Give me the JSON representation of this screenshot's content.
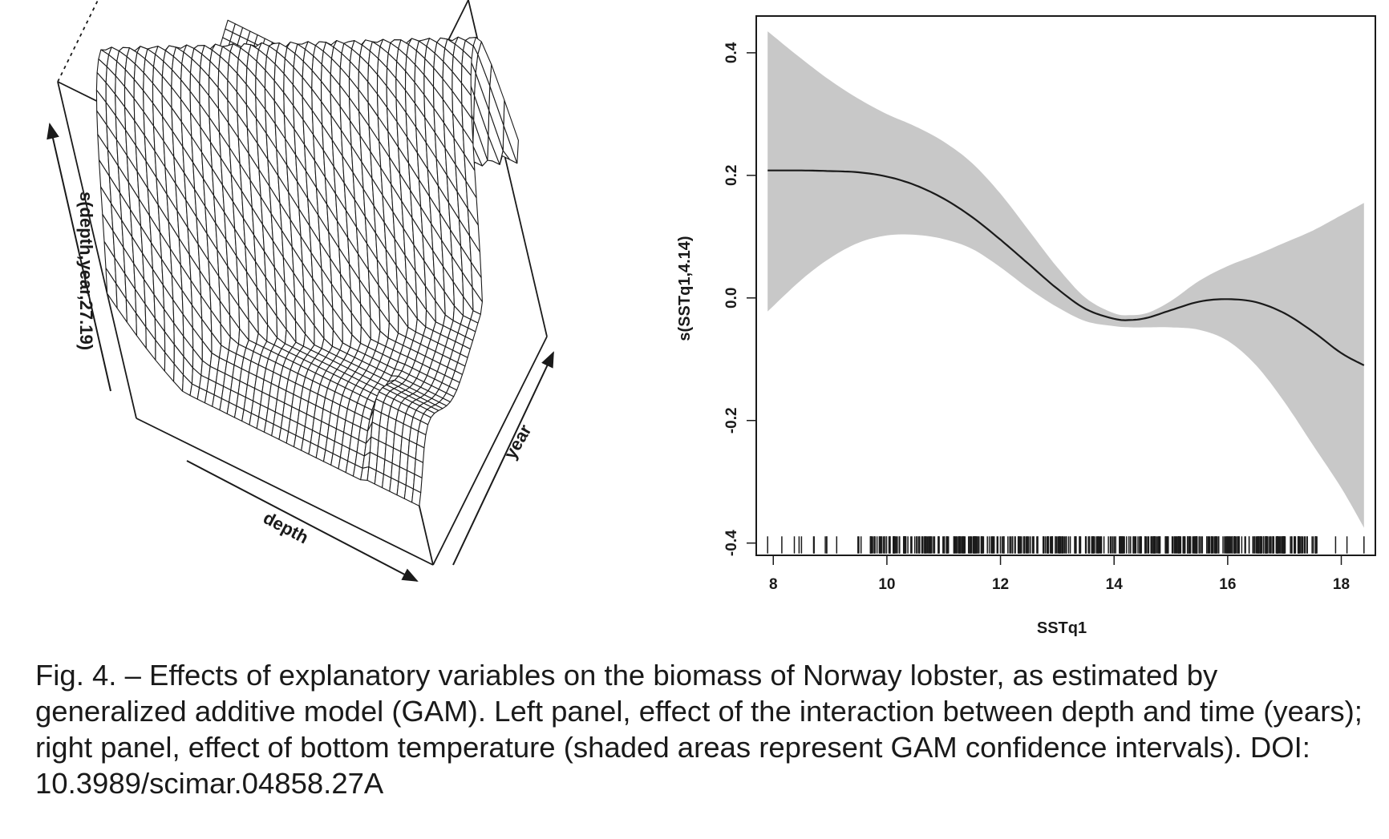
{
  "chart_data": [
    {
      "type": "surface",
      "panel": "left",
      "zlabel": "s(depth,year,27.19)",
      "xlabel": "depth",
      "ylabel": "year",
      "grid_resolution": 40
    },
    {
      "type": "line",
      "panel": "right",
      "xlabel": "SSTq1",
      "ylabel": "s(SSTq1,4.14)",
      "xlim": [
        7.7,
        18.6
      ],
      "ylim": [
        -0.42,
        0.46
      ],
      "xticks": [
        "8",
        "10",
        "12",
        "14",
        "16",
        "18"
      ],
      "yticks": [
        "-0.4",
        "-0.2",
        "0.0",
        "0.2",
        "0.4"
      ],
      "series": [
        {
          "role": "fit",
          "x": [
            7.9,
            8.5,
            9.0,
            9.5,
            10.0,
            10.5,
            11.0,
            11.5,
            12.0,
            12.5,
            13.0,
            13.5,
            14.0,
            14.3,
            14.6,
            15.0,
            15.5,
            16.0,
            16.5,
            17.0,
            17.5,
            18.0,
            18.4
          ],
          "y": [
            0.208,
            0.208,
            0.207,
            0.205,
            0.198,
            0.184,
            0.162,
            0.132,
            0.095,
            0.055,
            0.015,
            -0.018,
            -0.034,
            -0.036,
            -0.032,
            -0.02,
            -0.006,
            -0.002,
            -0.007,
            -0.025,
            -0.055,
            -0.09,
            -0.11
          ]
        },
        {
          "role": "confidence-upper",
          "x": [
            7.9,
            8.5,
            9.0,
            9.5,
            10.0,
            10.5,
            11.0,
            11.5,
            12.0,
            12.5,
            13.0,
            13.5,
            14.0,
            14.3,
            14.6,
            15.0,
            15.5,
            16.0,
            16.5,
            17.0,
            17.5,
            18.0,
            18.4
          ],
          "y": [
            0.435,
            0.39,
            0.355,
            0.325,
            0.3,
            0.28,
            0.255,
            0.22,
            0.17,
            0.11,
            0.05,
            0.0,
            -0.025,
            -0.028,
            -0.024,
            -0.005,
            0.028,
            0.052,
            0.07,
            0.09,
            0.11,
            0.135,
            0.155
          ]
        },
        {
          "role": "confidence-lower",
          "x": [
            7.9,
            8.5,
            9.0,
            9.5,
            10.0,
            10.5,
            11.0,
            11.5,
            12.0,
            12.5,
            13.0,
            13.5,
            14.0,
            14.3,
            14.6,
            15.0,
            15.5,
            16.0,
            16.5,
            17.0,
            17.5,
            18.0,
            18.4
          ],
          "y": [
            -0.022,
            0.03,
            0.065,
            0.09,
            0.102,
            0.103,
            0.096,
            0.08,
            0.05,
            0.015,
            -0.015,
            -0.038,
            -0.046,
            -0.048,
            -0.048,
            -0.048,
            -0.052,
            -0.07,
            -0.11,
            -0.17,
            -0.24,
            -0.31,
            -0.375
          ]
        }
      ],
      "rug_segments": [
        [
          7.9,
          7.9
        ],
        [
          8.15,
          9.2
        ],
        [
          9.3,
          9.6
        ],
        [
          9.7,
          17.6
        ],
        [
          17.9,
          17.9
        ],
        [
          18.1,
          18.1
        ],
        [
          18.4,
          18.4
        ]
      ]
    }
  ],
  "caption": "Fig. 4. – Effects of explanatory variables on the biomass of Norway lobster, as estimated by generalized additive model (GAM). Left panel, effect of the interaction between depth and time (years); right panel, effect of bottom temperature (shaded areas represent GAM confidence intervals). DOI: 10.3989/scimar.04858.27A",
  "colors": {
    "line": "#1a1a1a",
    "band": "#c8c8c8",
    "text": "#1a1a1a"
  }
}
